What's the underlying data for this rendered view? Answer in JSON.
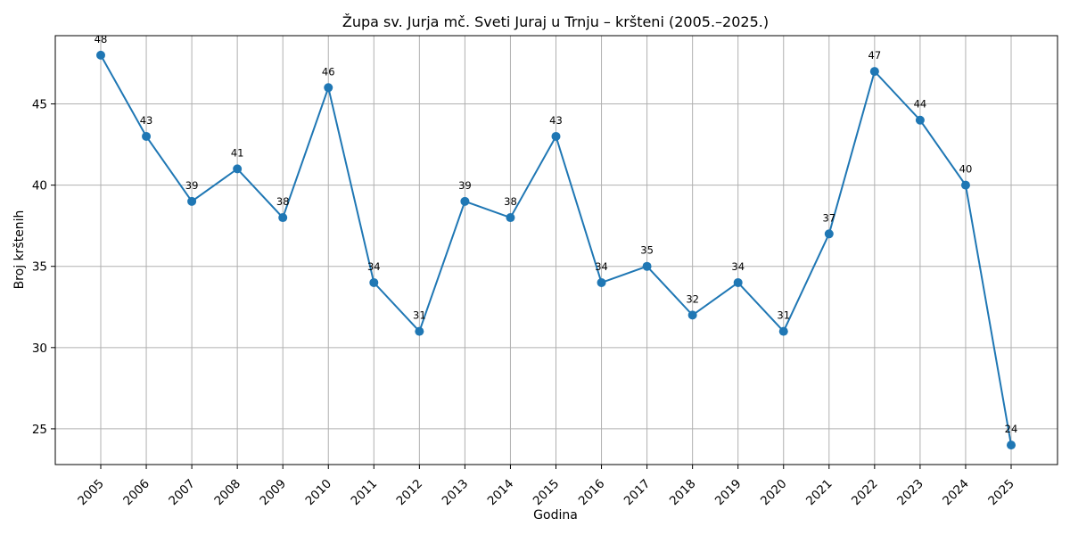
{
  "chart_data": {
    "type": "line",
    "title": "Župa sv. Jurja mč. Sveti Juraj u Trnju – kršteni (2005.–2025.)",
    "xlabel": "Godina",
    "ylabel": "Broj krštenih",
    "x": [
      "2005",
      "2006",
      "2007",
      "2008",
      "2009",
      "2010",
      "2011",
      "2012",
      "2013",
      "2014",
      "2015",
      "2016",
      "2017",
      "2018",
      "2019",
      "2020",
      "2021",
      "2022",
      "2023",
      "2024",
      "2025"
    ],
    "y": [
      48,
      43,
      39,
      41,
      38,
      46,
      34,
      31,
      39,
      38,
      43,
      34,
      35,
      32,
      34,
      31,
      37,
      47,
      44,
      40,
      24
    ],
    "y_ticks": [
      25,
      30,
      35,
      40,
      45
    ],
    "ylim": [
      22.8,
      49.2
    ],
    "grid": true,
    "color": "#1f77b4",
    "marker": "circle",
    "data_labels": true
  }
}
